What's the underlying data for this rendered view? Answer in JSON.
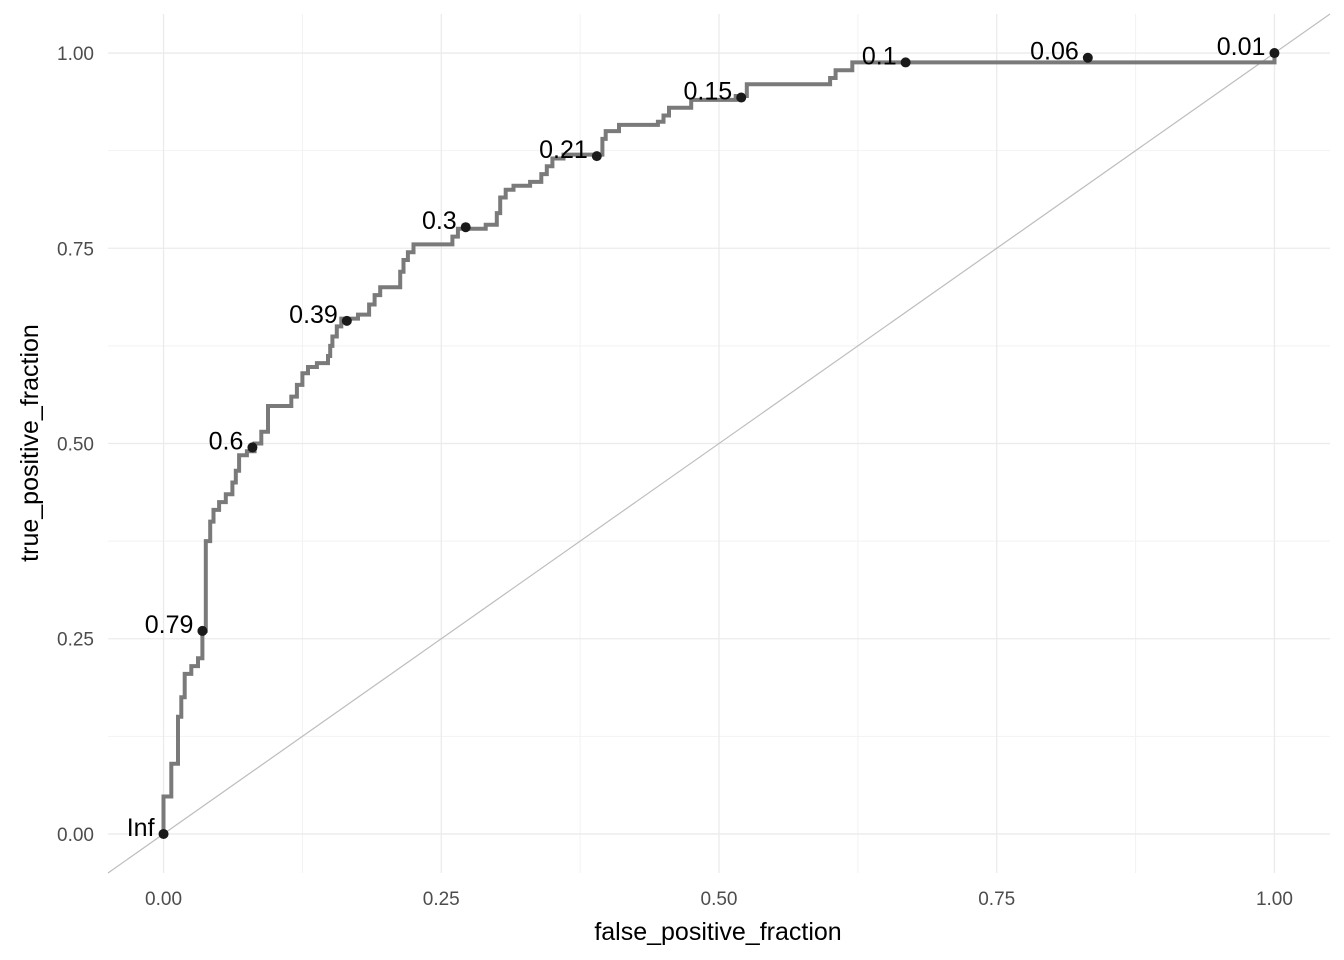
{
  "chart_data": {
    "type": "line",
    "title": "",
    "xlabel": "false_positive_fraction",
    "ylabel": "true_positive_fraction",
    "xlim": [
      -0.05,
      1.05
    ],
    "ylim": [
      -0.05,
      1.05
    ],
    "x_ticks": [
      0,
      0.25,
      0.5,
      0.75,
      1
    ],
    "y_ticks": [
      0,
      0.25,
      0.5,
      0.75,
      1
    ],
    "x_tick_labels": [
      "0.00",
      "0.25",
      "0.50",
      "0.75",
      "1.00"
    ],
    "y_tick_labels": [
      "0.00",
      "0.25",
      "0.50",
      "0.75",
      "1.00"
    ],
    "grid": true,
    "reference_line": {
      "from": [
        -0.05,
        -0.05
      ],
      "to": [
        1.05,
        1.05
      ],
      "color": "#bdbdbd"
    },
    "curve_color": "#7a7a7a",
    "point_color": "#1a1a1a",
    "series": [
      {
        "points": [
          [
            0.0,
            0.0
          ],
          [
            0.0,
            0.048
          ],
          [
            0.007,
            0.048
          ],
          [
            0.007,
            0.09
          ],
          [
            0.013,
            0.09
          ],
          [
            0.013,
            0.15
          ],
          [
            0.016,
            0.15
          ],
          [
            0.016,
            0.175
          ],
          [
            0.019,
            0.175
          ],
          [
            0.019,
            0.205
          ],
          [
            0.025,
            0.205
          ],
          [
            0.025,
            0.215
          ],
          [
            0.031,
            0.215
          ],
          [
            0.031,
            0.225
          ],
          [
            0.035,
            0.225
          ],
          [
            0.035,
            0.26
          ],
          [
            0.038,
            0.26
          ],
          [
            0.038,
            0.375
          ],
          [
            0.042,
            0.375
          ],
          [
            0.042,
            0.4
          ],
          [
            0.045,
            0.4
          ],
          [
            0.045,
            0.415
          ],
          [
            0.05,
            0.415
          ],
          [
            0.05,
            0.425
          ],
          [
            0.056,
            0.425
          ],
          [
            0.056,
            0.435
          ],
          [
            0.062,
            0.435
          ],
          [
            0.062,
            0.45
          ],
          [
            0.065,
            0.45
          ],
          [
            0.065,
            0.465
          ],
          [
            0.068,
            0.465
          ],
          [
            0.068,
            0.485
          ],
          [
            0.075,
            0.485
          ],
          [
            0.075,
            0.49
          ],
          [
            0.082,
            0.49
          ],
          [
            0.082,
            0.5
          ],
          [
            0.088,
            0.5
          ],
          [
            0.088,
            0.515
          ],
          [
            0.094,
            0.515
          ],
          [
            0.094,
            0.548
          ],
          [
            0.115,
            0.548
          ],
          [
            0.115,
            0.56
          ],
          [
            0.12,
            0.56
          ],
          [
            0.12,
            0.575
          ],
          [
            0.125,
            0.575
          ],
          [
            0.125,
            0.59
          ],
          [
            0.13,
            0.59
          ],
          [
            0.13,
            0.598
          ],
          [
            0.138,
            0.598
          ],
          [
            0.138,
            0.603
          ],
          [
            0.148,
            0.603
          ],
          [
            0.148,
            0.612
          ],
          [
            0.15,
            0.612
          ],
          [
            0.15,
            0.625
          ],
          [
            0.152,
            0.625
          ],
          [
            0.152,
            0.637
          ],
          [
            0.156,
            0.637
          ],
          [
            0.156,
            0.65
          ],
          [
            0.16,
            0.65
          ],
          [
            0.16,
            0.66
          ],
          [
            0.175,
            0.66
          ],
          [
            0.175,
            0.665
          ],
          [
            0.185,
            0.665
          ],
          [
            0.185,
            0.678
          ],
          [
            0.19,
            0.678
          ],
          [
            0.19,
            0.69
          ],
          [
            0.195,
            0.69
          ],
          [
            0.195,
            0.7
          ],
          [
            0.213,
            0.7
          ],
          [
            0.213,
            0.72
          ],
          [
            0.216,
            0.72
          ],
          [
            0.216,
            0.735
          ],
          [
            0.22,
            0.735
          ],
          [
            0.22,
            0.745
          ],
          [
            0.225,
            0.745
          ],
          [
            0.225,
            0.755
          ],
          [
            0.26,
            0.755
          ],
          [
            0.26,
            0.765
          ],
          [
            0.265,
            0.765
          ],
          [
            0.265,
            0.775
          ],
          [
            0.29,
            0.775
          ],
          [
            0.29,
            0.78
          ],
          [
            0.3,
            0.78
          ],
          [
            0.3,
            0.795
          ],
          [
            0.303,
            0.795
          ],
          [
            0.303,
            0.815
          ],
          [
            0.308,
            0.815
          ],
          [
            0.308,
            0.825
          ],
          [
            0.315,
            0.825
          ],
          [
            0.315,
            0.83
          ],
          [
            0.33,
            0.83
          ],
          [
            0.33,
            0.835
          ],
          [
            0.34,
            0.835
          ],
          [
            0.34,
            0.845
          ],
          [
            0.345,
            0.845
          ],
          [
            0.345,
            0.855
          ],
          [
            0.35,
            0.855
          ],
          [
            0.35,
            0.865
          ],
          [
            0.36,
            0.865
          ],
          [
            0.36,
            0.87
          ],
          [
            0.395,
            0.87
          ],
          [
            0.395,
            0.89
          ],
          [
            0.398,
            0.89
          ],
          [
            0.398,
            0.9
          ],
          [
            0.41,
            0.9
          ],
          [
            0.41,
            0.908
          ],
          [
            0.445,
            0.908
          ],
          [
            0.445,
            0.912
          ],
          [
            0.45,
            0.912
          ],
          [
            0.45,
            0.92
          ],
          [
            0.455,
            0.92
          ],
          [
            0.455,
            0.93
          ],
          [
            0.475,
            0.93
          ],
          [
            0.475,
            0.94
          ],
          [
            0.515,
            0.94
          ],
          [
            0.515,
            0.945
          ],
          [
            0.525,
            0.945
          ],
          [
            0.525,
            0.96
          ],
          [
            0.6,
            0.96
          ],
          [
            0.6,
            0.968
          ],
          [
            0.605,
            0.968
          ],
          [
            0.605,
            0.978
          ],
          [
            0.62,
            0.978
          ],
          [
            0.62,
            0.988
          ],
          [
            1.0,
            0.988
          ],
          [
            1.0,
            1.0
          ]
        ]
      }
    ],
    "labeled_points": [
      {
        "x": 0.0,
        "y": 0.0,
        "label": "Inf"
      },
      {
        "x": 0.035,
        "y": 0.26,
        "label": "0.79"
      },
      {
        "x": 0.08,
        "y": 0.495,
        "label": "0.6"
      },
      {
        "x": 0.165,
        "y": 0.657,
        "label": "0.39"
      },
      {
        "x": 0.272,
        "y": 0.777,
        "label": "0.3"
      },
      {
        "x": 0.39,
        "y": 0.868,
        "label": "0.21"
      },
      {
        "x": 0.52,
        "y": 0.943,
        "label": "0.15"
      },
      {
        "x": 0.668,
        "y": 0.988,
        "label": "0.1"
      },
      {
        "x": 0.832,
        "y": 0.994,
        "label": "0.06"
      },
      {
        "x": 1.0,
        "y": 1.0,
        "label": "0.01"
      }
    ]
  }
}
